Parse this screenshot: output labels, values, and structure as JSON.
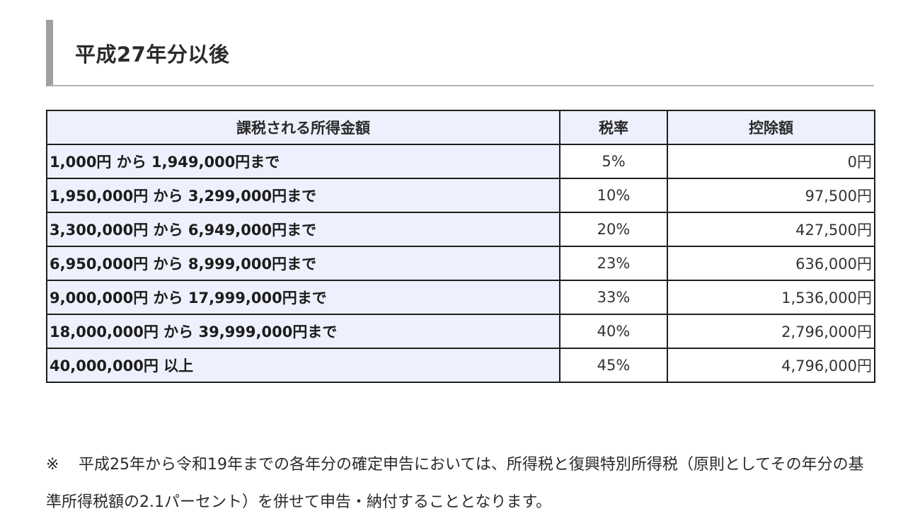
{
  "section": {
    "heading": "平成27年分以後"
  },
  "table": {
    "headers": {
      "income": "課税される所得金額",
      "rate": "税率",
      "deduction": "控除額"
    },
    "rows": [
      {
        "income": "1,000円 から 1,949,000円まで",
        "rate": "5%",
        "deduction": "0円"
      },
      {
        "income": "1,950,000円 から 3,299,000円まで",
        "rate": "10%",
        "deduction": "97,500円"
      },
      {
        "income": "3,300,000円 から 6,949,000円まで",
        "rate": "20%",
        "deduction": "427,500円"
      },
      {
        "income": "6,950,000円 から 8,999,000円まで",
        "rate": "23%",
        "deduction": "636,000円"
      },
      {
        "income": "9,000,000円 から 17,999,000円まで",
        "rate": "33%",
        "deduction": "1,536,000円"
      },
      {
        "income": "18,000,000円 から 39,999,000円まで",
        "rate": "40%",
        "deduction": "2,796,000円"
      },
      {
        "income": "40,000,000円 以上",
        "rate": "45%",
        "deduction": "4,796,000円"
      }
    ]
  },
  "footnote": {
    "mark": "※",
    "text": "平成25年から令和19年までの各年分の確定申告においては、所得税と復興特別所得税（原則としてその年分の基準所得税額の2.1パーセント）を併せて申告・納付することとなります。"
  }
}
